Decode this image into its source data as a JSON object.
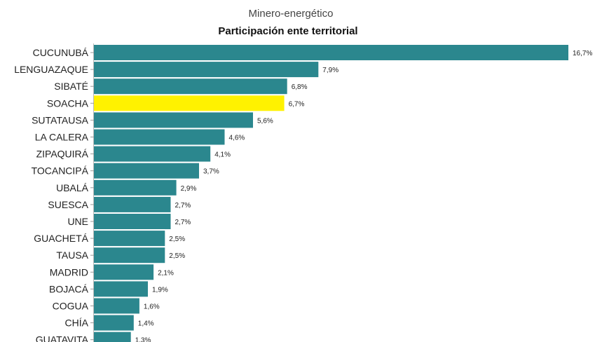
{
  "chart_data": {
    "type": "bar",
    "orientation": "horizontal",
    "subtitle": "Minero-energético",
    "title": "Participación ente territorial",
    "categories": [
      "CUCUNUBÁ",
      "LENGUAZAQUE",
      "SIBATÉ",
      "SOACHA",
      "SUTATAUSA",
      "LA CALERA",
      "ZIPAQUIRÁ",
      "TOCANCIPÁ",
      "UBALÁ",
      "SUESCA",
      "UNE",
      "GUACHETÁ",
      "TAUSA",
      "MADRID",
      "BOJACÁ",
      "COGUA",
      "CHÍA",
      "GUATAVITA"
    ],
    "values": [
      16.7,
      7.9,
      6.8,
      6.7,
      5.6,
      4.6,
      4.1,
      3.7,
      2.9,
      2.7,
      2.7,
      2.5,
      2.5,
      2.1,
      1.9,
      1.6,
      1.4,
      1.3
    ],
    "value_labels": [
      "16,7%",
      "7,9%",
      "6,8%",
      "6,7%",
      "5,6%",
      "4,6%",
      "4,1%",
      "3,7%",
      "2,9%",
      "2,7%",
      "2,7%",
      "2,5%",
      "2,5%",
      "2,1%",
      "1,9%",
      "1,6%",
      "1,4%",
      "1,3%"
    ],
    "highlighted_category": "SOACHA",
    "colors": {
      "bar": "#2b878e",
      "highlight": "#fff200"
    },
    "xlim": [
      0,
      16.7
    ],
    "grid": false,
    "legend": "none"
  }
}
